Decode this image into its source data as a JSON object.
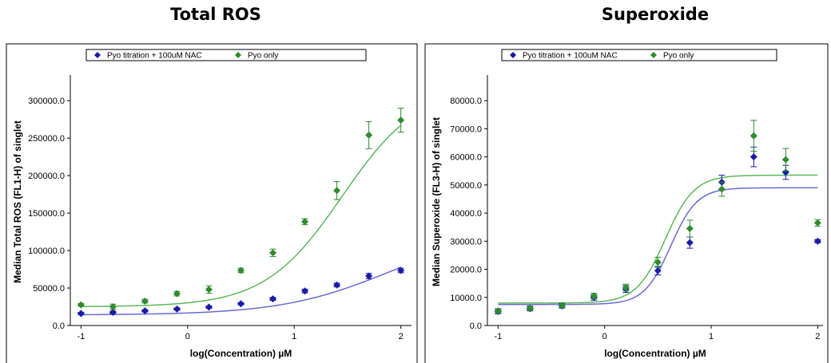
{
  "chart_data": [
    {
      "type": "scatter",
      "title": "Total ROS",
      "xlabel": "log(Concentration) µM",
      "ylabel": "Median Total ROS (FL1-H) of singlet",
      "xlim": [
        -1.1,
        2.1
      ],
      "ylim": [
        0,
        330000
      ],
      "x_ticks": [
        -1,
        0,
        1,
        2
      ],
      "y_ticks": [
        0,
        50000,
        100000,
        150000,
        200000,
        250000,
        300000
      ],
      "y_tick_labels": [
        "0.0",
        "50000.0",
        "100000.0",
        "150000.0",
        "200000.0",
        "250000.0",
        "300000.0"
      ],
      "legend_position": "top",
      "series": [
        {
          "name": "Pyo titration + 100uM NAC",
          "color": "#1a1aa8",
          "fit_color": "#6a6ad4",
          "x": [
            -1,
            -0.7,
            -0.4,
            -0.1,
            0.2,
            0.5,
            0.8,
            1.1,
            1.4,
            1.7,
            2.0
          ],
          "y": [
            16000,
            17500,
            19500,
            22000,
            24500,
            29000,
            35500,
            46000,
            54000,
            66000,
            73500
          ],
          "err": [
            1500,
            1500,
            1500,
            1500,
            1500,
            1500,
            2000,
            2500,
            2500,
            3500,
            3000
          ],
          "fit": {
            "bottom": 14000,
            "top": 130000,
            "logec50": 1.9,
            "hill": 0.85
          }
        },
        {
          "name": "Pyo only",
          "color": "#2e8b2e",
          "fit_color": "#5cb85c",
          "x": [
            -1,
            -0.7,
            -0.4,
            -0.1,
            0.2,
            0.5,
            0.8,
            1.1,
            1.4,
            1.7,
            2.0
          ],
          "y": [
            27500,
            25000,
            32500,
            42500,
            48000,
            73500,
            97000,
            138500,
            180000,
            254000,
            274000
          ],
          "err": [
            2000,
            3500,
            2500,
            3000,
            5000,
            3000,
            5000,
            4000,
            12000,
            18000,
            16000
          ],
          "fit": {
            "bottom": 25000,
            "top": 320000,
            "logec50": 1.45,
            "hill": 1.2
          }
        }
      ]
    },
    {
      "type": "scatter",
      "title": "Superoxide",
      "xlabel": "log(Concentration) µM",
      "ylabel": "Median Superoxide (FL3-H) of singlet",
      "xlim": [
        -1.1,
        2.05
      ],
      "ylim": [
        0,
        88000
      ],
      "x_ticks": [
        -1,
        0,
        1,
        2
      ],
      "y_ticks": [
        0,
        10000,
        20000,
        30000,
        40000,
        50000,
        60000,
        70000,
        80000
      ],
      "y_tick_labels": [
        "0.0",
        "10000.0",
        "20000.0",
        "30000.0",
        "40000.0",
        "50000.0",
        "60000.0",
        "70000.0",
        "80000.0"
      ],
      "legend_position": "top",
      "series": [
        {
          "name": "Pyo titration + 100uM NAC",
          "color": "#1a1aa8",
          "fit_color": "#6a6ad4",
          "x": [
            -1,
            -0.7,
            -0.4,
            -0.1,
            0.2,
            0.5,
            0.8,
            1.1,
            1.4,
            1.7,
            2.0
          ],
          "y": [
            5000,
            6000,
            7000,
            10000,
            13000,
            19500,
            29500,
            51000,
            60000,
            54500,
            30000
          ],
          "err": [
            800,
            800,
            800,
            1000,
            1200,
            1500,
            2000,
            2500,
            3500,
            2500,
            600
          ],
          "fit": {
            "bottom": 7500,
            "top": 49000,
            "logec50": 0.62,
            "hill": 3.5
          }
        },
        {
          "name": "Pyo only",
          "color": "#2e8b2e",
          "fit_color": "#5cb85c",
          "x": [
            -1,
            -0.7,
            -0.4,
            -0.1,
            0.2,
            0.5,
            0.8,
            1.1,
            1.4,
            1.7,
            2.0
          ],
          "y": [
            5200,
            6200,
            7200,
            10500,
            13500,
            22500,
            34500,
            48500,
            67500,
            59000,
            36500
          ],
          "err": [
            800,
            800,
            800,
            1000,
            1200,
            1800,
            3000,
            2500,
            5500,
            4000,
            1200
          ],
          "fit": {
            "bottom": 8000,
            "top": 53500,
            "logec50": 0.57,
            "hill": 3.2
          }
        }
      ]
    }
  ]
}
